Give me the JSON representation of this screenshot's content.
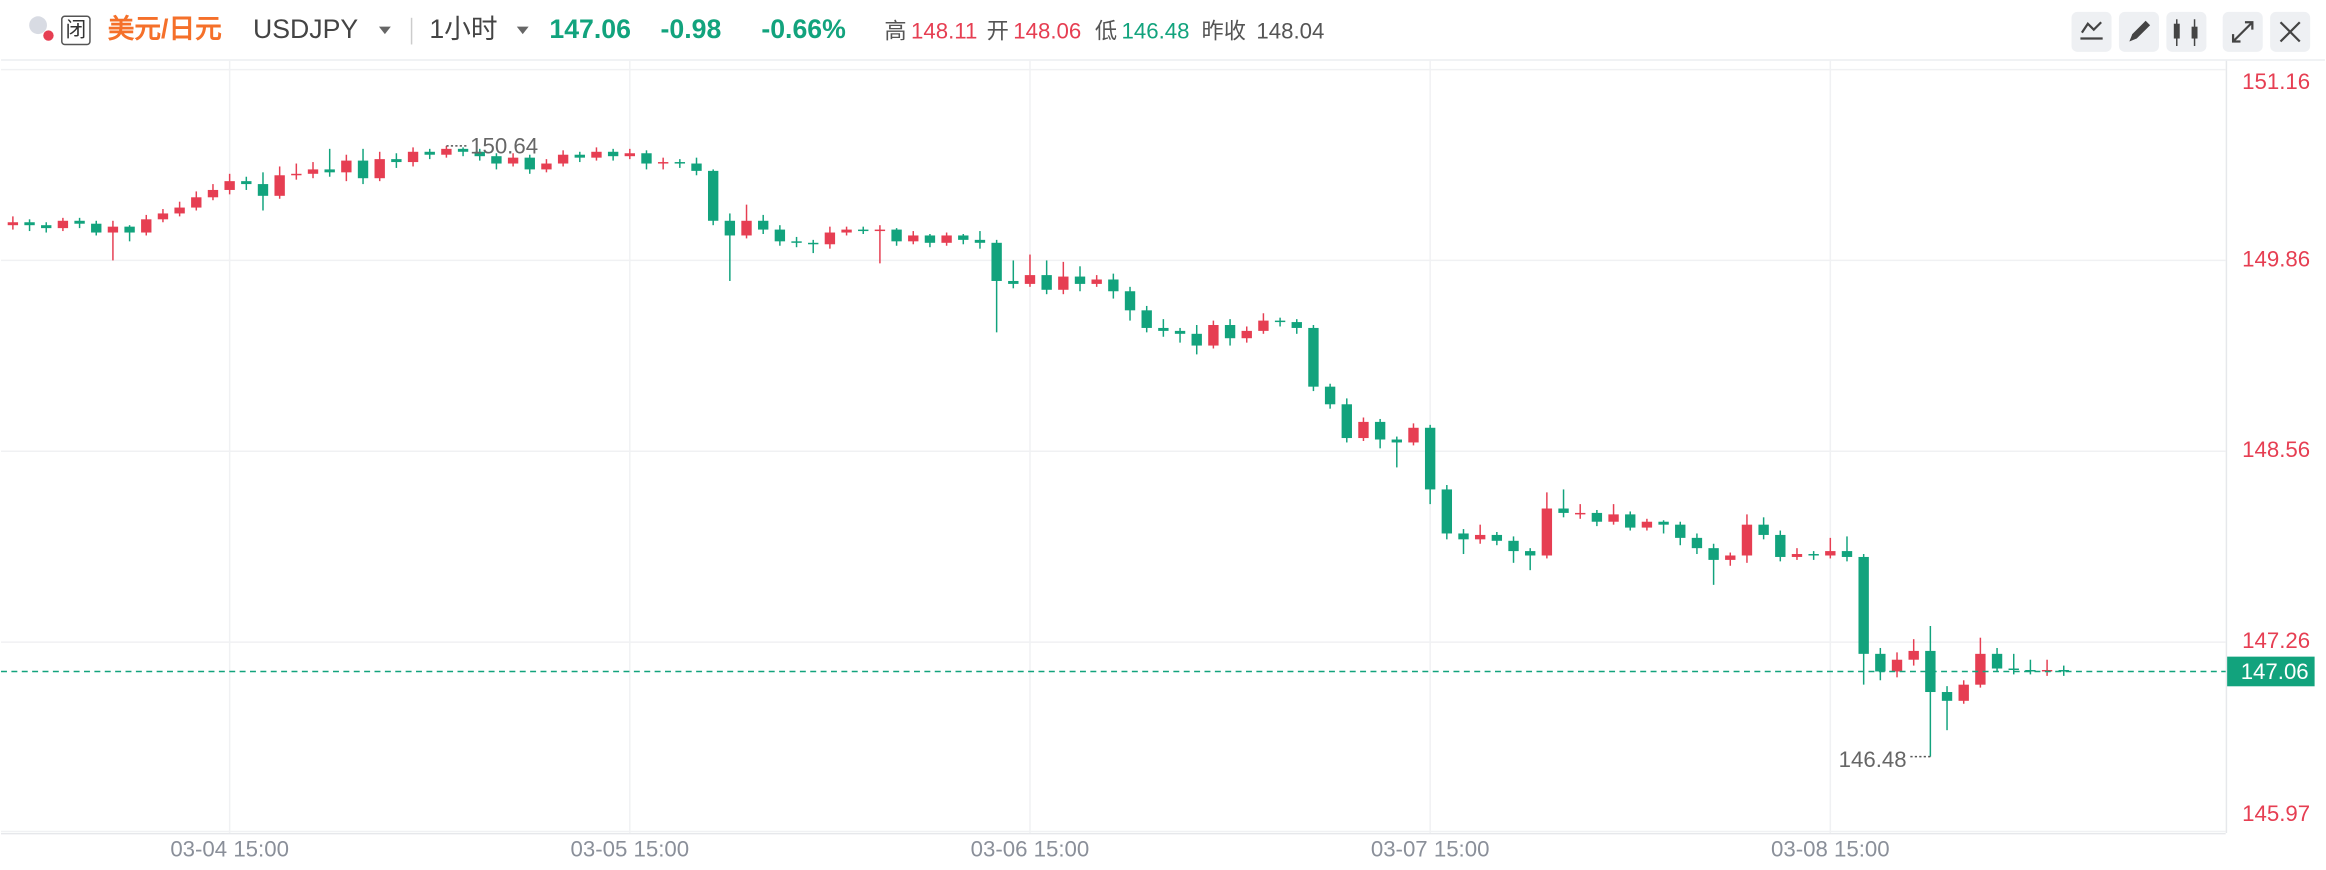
{
  "header": {
    "tag": "闭",
    "name": "美元/日元",
    "symbol": "USDJPY",
    "interval": "1小时",
    "price": "147.06",
    "change": "-0.98",
    "change_pct": "-0.66%",
    "high_label": "高",
    "high": "148.11",
    "open_label": "开",
    "open": "148.06",
    "low_label": "低",
    "low": "146.48",
    "prev_label": "昨收",
    "prev": "148.04"
  },
  "chart_data": {
    "type": "candlestick",
    "up_color": "#e63e52",
    "down_color": "#12a37d",
    "grid": true,
    "categories": [
      null,
      null,
      null,
      null,
      null,
      null,
      null,
      null,
      null,
      null,
      null,
      null,
      null,
      "03-04 15:00",
      null,
      null,
      null,
      null,
      null,
      null,
      null,
      null,
      null,
      null,
      null,
      null,
      null,
      null,
      null,
      null,
      null,
      null,
      null,
      null,
      null,
      null,
      null,
      "03-05 15:00",
      null,
      null,
      null,
      null,
      null,
      null,
      null,
      null,
      null,
      null,
      null,
      null,
      null,
      null,
      null,
      null,
      null,
      null,
      null,
      null,
      null,
      null,
      null,
      "03-06 15:00",
      null,
      null,
      null,
      null,
      null,
      null,
      null,
      null,
      null,
      null,
      null,
      null,
      null,
      null,
      null,
      null,
      null,
      null,
      null,
      null,
      null,
      null,
      null,
      "03-07 15:00",
      null,
      null,
      null,
      null,
      null,
      null,
      null,
      null,
      null,
      null,
      null,
      null,
      null,
      null,
      null,
      null,
      null,
      null,
      null,
      null,
      null,
      null,
      null,
      "03-08 15:00",
      null,
      null,
      null,
      null,
      null,
      null,
      null,
      null,
      null,
      null,
      null,
      null,
      null,
      null
    ],
    "open": [
      150.1,
      150.12,
      150.1,
      150.08,
      150.13,
      150.11,
      150.05,
      150.09,
      150.05,
      150.14,
      150.18,
      150.22,
      150.29,
      150.34,
      150.4,
      150.38,
      150.3,
      150.44,
      150.45,
      150.48,
      150.46,
      150.54,
      150.42,
      150.55,
      150.53,
      150.6,
      150.58,
      150.62,
      150.6,
      150.57,
      150.52,
      150.56,
      150.48,
      150.52,
      150.58,
      150.56,
      150.6,
      150.57,
      150.59,
      150.52,
      150.53,
      150.52,
      150.47,
      150.13,
      150.03,
      150.13,
      150.07,
      149.99,
      149.98,
      149.97,
      150.05,
      150.07,
      150.06,
      150.07,
      149.99,
      150.03,
      149.98,
      150.03,
      150.0,
      149.98,
      149.72,
      149.7,
      149.76,
      149.66,
      149.75,
      149.7,
      149.73,
      149.65,
      149.52,
      149.4,
      149.38,
      149.36,
      149.28,
      149.42,
      149.33,
      149.38,
      149.45,
      149.44,
      149.4,
      149.0,
      148.88,
      148.65,
      148.76,
      148.64,
      148.62,
      148.72,
      148.3,
      148.0,
      147.96,
      147.99,
      147.95,
      147.88,
      147.85,
      148.17,
      148.14,
      148.14,
      148.08,
      148.13,
      148.04,
      148.08,
      148.06,
      147.97,
      147.9,
      147.82,
      147.85,
      148.06,
      147.99,
      147.84,
      147.86,
      147.85,
      147.88,
      147.84,
      147.18,
      147.06,
      147.14,
      147.2,
      146.92,
      146.86,
      146.97,
      147.18,
      147.08,
      147.07,
      147.06,
      147.07
    ],
    "high": [
      150.16,
      150.14,
      150.12,
      150.15,
      150.15,
      150.13,
      150.13,
      150.1,
      150.17,
      150.21,
      150.26,
      150.33,
      150.38,
      150.45,
      150.43,
      150.46,
      150.5,
      150.52,
      150.53,
      150.62,
      150.58,
      150.62,
      150.6,
      150.59,
      150.63,
      150.62,
      150.64,
      150.63,
      150.62,
      150.59,
      150.59,
      150.58,
      150.55,
      150.61,
      150.6,
      150.63,
      150.62,
      150.62,
      150.61,
      150.56,
      150.55,
      150.56,
      150.48,
      150.18,
      150.24,
      150.17,
      150.1,
      150.02,
      150.0,
      150.09,
      150.09,
      150.09,
      150.1,
      150.08,
      150.06,
      150.04,
      150.05,
      150.04,
      150.06,
      150.0,
      149.86,
      149.9,
      149.86,
      149.85,
      149.82,
      149.76,
      149.77,
      149.68,
      149.55,
      149.46,
      149.4,
      149.42,
      149.45,
      149.46,
      149.41,
      149.5,
      149.47,
      149.46,
      149.42,
      149.02,
      148.92,
      148.79,
      148.78,
      148.66,
      148.75,
      148.74,
      148.33,
      148.03,
      148.06,
      148.01,
      147.98,
      147.9,
      148.28,
      148.3,
      148.2,
      148.16,
      148.2,
      148.15,
      148.1,
      148.09,
      148.08,
      148.0,
      147.93,
      147.87,
      148.13,
      148.11,
      148.02,
      147.9,
      147.88,
      147.97,
      147.98,
      147.86,
      147.22,
      147.19,
      147.28,
      147.37,
      146.96,
      147.0,
      147.29,
      147.22,
      147.18,
      147.14,
      147.14,
      147.1
    ],
    "low": [
      150.07,
      150.06,
      150.05,
      150.06,
      150.08,
      150.03,
      149.86,
      149.99,
      150.03,
      150.12,
      150.16,
      150.2,
      150.27,
      150.31,
      150.34,
      150.2,
      150.28,
      150.41,
      150.42,
      150.43,
      150.4,
      150.38,
      150.4,
      150.49,
      150.5,
      150.55,
      150.56,
      150.57,
      150.54,
      150.48,
      150.5,
      150.45,
      150.46,
      150.5,
      150.53,
      150.54,
      150.54,
      150.55,
      150.48,
      150.48,
      150.49,
      150.44,
      150.1,
      149.72,
      150.01,
      150.04,
      149.96,
      149.95,
      149.91,
      149.94,
      150.03,
      150.04,
      149.84,
      149.96,
      149.97,
      149.95,
      149.96,
      149.97,
      149.94,
      149.37,
      149.67,
      149.68,
      149.63,
      149.63,
      149.65,
      149.68,
      149.6,
      149.45,
      149.37,
      149.34,
      149.3,
      149.22,
      149.26,
      149.28,
      149.3,
      149.36,
      149.41,
      149.36,
      148.97,
      148.85,
      148.62,
      148.63,
      148.58,
      148.45,
      148.6,
      148.2,
      147.96,
      147.86,
      147.93,
      147.92,
      147.8,
      147.75,
      147.83,
      148.11,
      148.1,
      148.05,
      148.06,
      148.02,
      148.02,
      148.0,
      147.92,
      147.86,
      147.65,
      147.78,
      147.8,
      147.96,
      147.81,
      147.82,
      147.82,
      147.83,
      147.81,
      146.97,
      147.0,
      147.02,
      147.1,
      146.48,
      146.66,
      146.84,
      146.95,
      147.06,
      147.04,
      147.04,
      147.03,
      147.03
    ],
    "close": [
      150.12,
      150.1,
      150.08,
      150.13,
      150.11,
      150.05,
      150.09,
      150.05,
      150.14,
      150.18,
      150.22,
      150.29,
      150.34,
      150.4,
      150.38,
      150.3,
      150.44,
      150.45,
      150.48,
      150.46,
      150.54,
      150.42,
      150.55,
      150.53,
      150.6,
      150.58,
      150.62,
      150.6,
      150.57,
      150.52,
      150.56,
      150.48,
      150.52,
      150.58,
      150.56,
      150.6,
      150.57,
      150.59,
      150.52,
      150.53,
      150.52,
      150.47,
      150.13,
      150.03,
      150.13,
      150.07,
      149.99,
      149.98,
      149.97,
      150.05,
      150.07,
      150.06,
      150.07,
      149.99,
      150.03,
      149.98,
      150.03,
      150.0,
      149.98,
      149.72,
      149.7,
      149.76,
      149.66,
      149.75,
      149.7,
      149.73,
      149.65,
      149.52,
      149.4,
      149.38,
      149.36,
      149.28,
      149.42,
      149.33,
      149.38,
      149.45,
      149.44,
      149.4,
      149.0,
      148.88,
      148.65,
      148.76,
      148.64,
      148.62,
      148.72,
      148.3,
      148.0,
      147.96,
      147.99,
      147.95,
      147.88,
      147.85,
      148.17,
      148.14,
      148.14,
      148.08,
      148.13,
      148.04,
      148.08,
      148.06,
      147.97,
      147.9,
      147.82,
      147.85,
      148.06,
      147.99,
      147.84,
      147.86,
      147.85,
      147.88,
      147.84,
      147.18,
      147.06,
      147.14,
      147.2,
      146.92,
      146.86,
      146.97,
      147.18,
      147.08,
      147.07,
      147.06,
      147.07,
      147.06
    ],
    "ylim": [
      145.96,
      151.22
    ],
    "yticks": [
      145.97,
      147.26,
      148.56,
      149.86,
      151.16
    ],
    "current_price": 147.06,
    "max_label": 150.64,
    "max_index": 26,
    "min_label": 146.48,
    "min_index": 115
  }
}
